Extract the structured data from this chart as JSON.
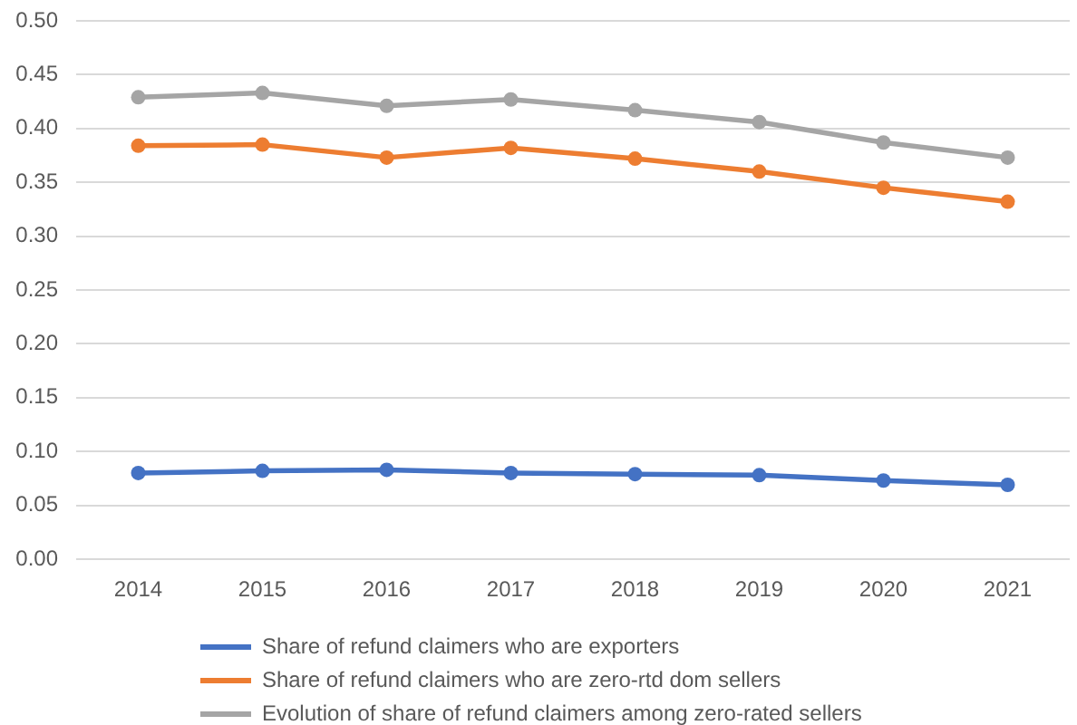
{
  "chart_data": {
    "type": "line",
    "categories": [
      "2014",
      "2015",
      "2016",
      "2017",
      "2018",
      "2019",
      "2020",
      "2021"
    ],
    "series": [
      {
        "name": "Share of refund claimers who are exporters",
        "color": "#4472c4",
        "values": [
          0.08,
          0.082,
          0.083,
          0.08,
          0.079,
          0.078,
          0.073,
          0.069
        ]
      },
      {
        "name": "Share of refund claimers who are zero-rtd dom sellers",
        "color": "#ed7d31",
        "values": [
          0.384,
          0.385,
          0.373,
          0.382,
          0.372,
          0.36,
          0.345,
          0.332
        ]
      },
      {
        "name": "Evolution of share of refund claimers among zero-rated sellers",
        "color": "#a5a5a5",
        "values": [
          0.429,
          0.433,
          0.421,
          0.427,
          0.417,
          0.406,
          0.387,
          0.373
        ]
      }
    ],
    "ylim": [
      0,
      0.5
    ],
    "yticks": [
      {
        "value": 0,
        "label": "0.00"
      },
      {
        "value": 0.05,
        "label": "0.05"
      },
      {
        "value": 0.1,
        "label": "0.10"
      },
      {
        "value": 0.15,
        "label": "0.15"
      },
      {
        "value": 0.2,
        "label": "0.20"
      },
      {
        "value": 0.25,
        "label": "0.25"
      },
      {
        "value": 0.3,
        "label": "0.30"
      },
      {
        "value": 0.35,
        "label": "0.35"
      },
      {
        "value": 0.4,
        "label": "0.40"
      },
      {
        "value": 0.45,
        "label": "0.45"
      },
      {
        "value": 0.5,
        "label": "0.50"
      }
    ],
    "grid": "y",
    "legend": "bottom",
    "marker": "circle"
  }
}
